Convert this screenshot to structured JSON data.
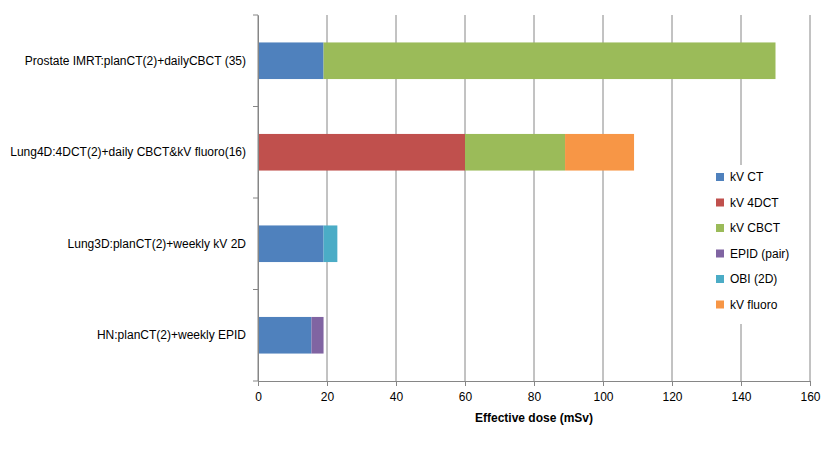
{
  "chart_data": {
    "type": "bar",
    "orientation": "horizontal",
    "stacked": true,
    "grid": true,
    "legend": "right",
    "x_label": "Effective dose (mSv)",
    "categories": [
      "Prostate IMRT:planCT(2)+dailyCBCT (35)",
      "Lung4D:4DCT(2)+daily CBCT&kV fluoro(16)",
      "Lung3D:planCT(2)+weekly kV 2D",
      "HN:planCT(2)+weekly EPID"
    ],
    "series": [
      {
        "name": "kV CT",
        "color": "#4f81bd",
        "values": [
          19,
          null,
          19,
          15.5
        ]
      },
      {
        "name": "kV 4DCT",
        "color": "#c0504d",
        "values": [
          null,
          60,
          null,
          null
        ]
      },
      {
        "name": "kV CBCT",
        "color": "#9bbb59",
        "values": [
          131,
          29,
          null,
          null
        ]
      },
      {
        "name": "EPID (pair)",
        "color": "#8064a2",
        "values": [
          null,
          null,
          null,
          3.5
        ]
      },
      {
        "name": "OBI (2D)",
        "color": "#4bacc6",
        "values": [
          null,
          null,
          4,
          null
        ]
      },
      {
        "name": "kV fluoro",
        "color": "#f79646",
        "values": [
          null,
          20,
          null,
          null
        ]
      }
    ],
    "xlim": [
      0,
      160
    ],
    "xticks": [
      0,
      20,
      40,
      60,
      80,
      100,
      120,
      140,
      160
    ]
  }
}
